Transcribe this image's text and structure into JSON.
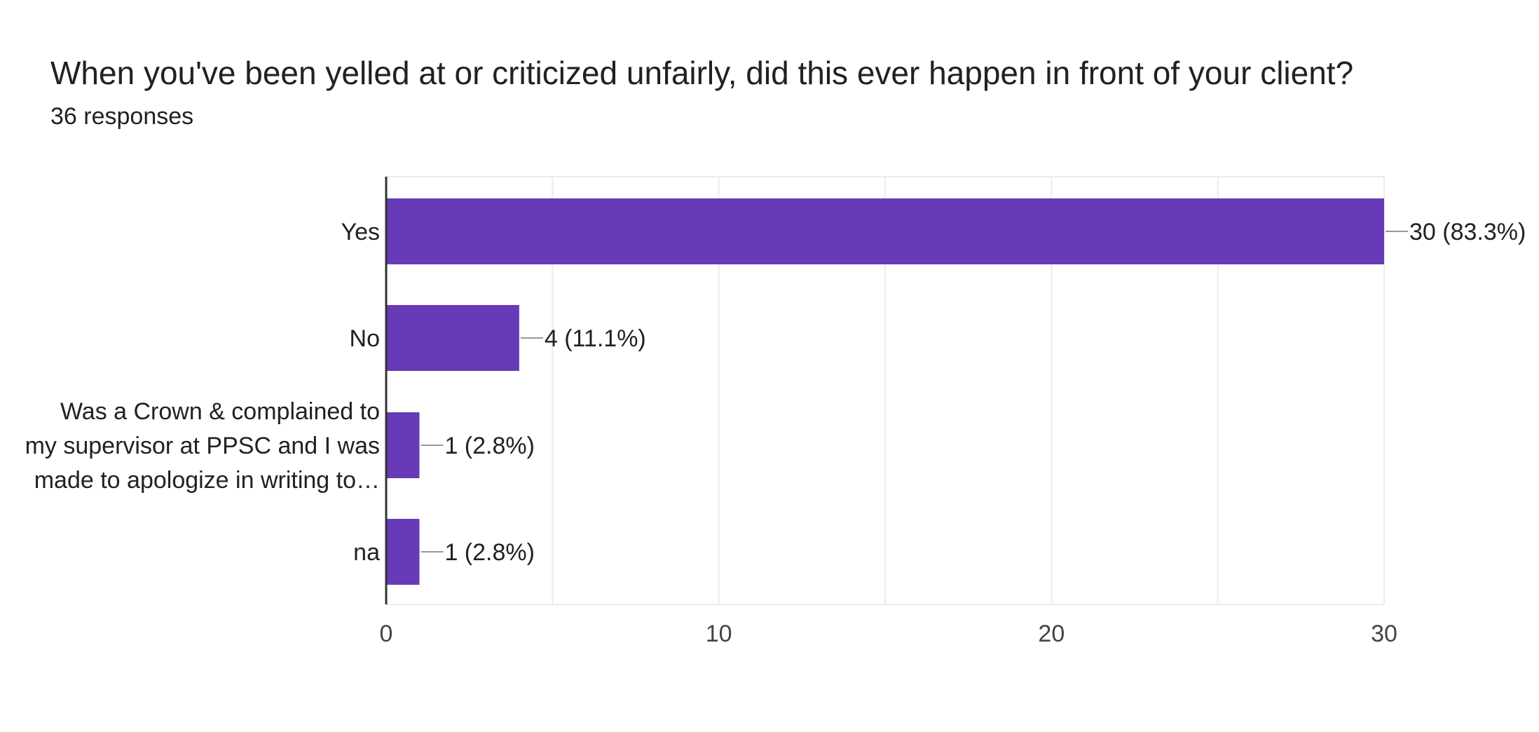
{
  "header": {
    "title": "When you've been yelled at or criticized unfairly, did this ever happen in front of your client?",
    "responses": "36 responses"
  },
  "colors": {
    "bar": "#673AB7",
    "gridline": "#EBEBEB",
    "axis": "#333333",
    "leader": "#999999"
  },
  "chart_data": {
    "type": "bar",
    "orientation": "horizontal",
    "categories": [
      [
        "Yes"
      ],
      [
        "No"
      ],
      [
        "Was a Crown & complained to",
        "my supervisor at PPSC and I was",
        "made to apologize in writing to…"
      ],
      [
        "na"
      ]
    ],
    "values": [
      30,
      4,
      1,
      1
    ],
    "data_labels": [
      "30 (83.3%)",
      "4 (11.1%)",
      "1 (2.8%)",
      "1 (2.8%)"
    ],
    "xlim": [
      0,
      30
    ],
    "xticks": [
      0,
      10,
      20,
      30
    ],
    "grid": true
  }
}
